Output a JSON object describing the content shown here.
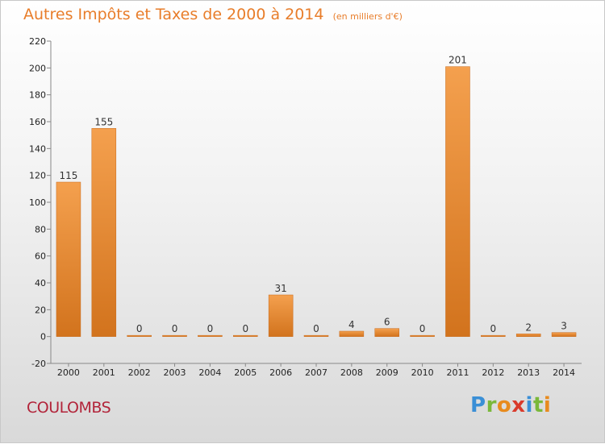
{
  "chart_data": {
    "type": "bar",
    "title": "Autres Impôts et Taxes de 2000 à 2014",
    "subtitle": "(en milliers d'€)",
    "categories": [
      "2000",
      "2001",
      "2002",
      "2003",
      "2004",
      "2005",
      "2006",
      "2007",
      "2008",
      "2009",
      "2010",
      "2011",
      "2012",
      "2013",
      "2014"
    ],
    "values": [
      115,
      155,
      0,
      0,
      0,
      0,
      31,
      0,
      4,
      6,
      0,
      201,
      0,
      2,
      3
    ],
    "data_labels": [
      "115",
      "155",
      "0",
      "0",
      "0",
      "0",
      "31",
      "0",
      "4",
      "6",
      "0",
      "201",
      "0",
      "2",
      "3"
    ],
    "xlabel": "",
    "ylabel": "",
    "ylim": [
      -20,
      220
    ],
    "yticks": [
      -20,
      0,
      20,
      40,
      60,
      80,
      100,
      120,
      140,
      160,
      180,
      200,
      220
    ],
    "grid": false,
    "bar_color": "#e8842e"
  },
  "footer": {
    "town": "COULOMBS",
    "brand_letters": [
      {
        "ch": "P",
        "color": "#3a8fd6"
      },
      {
        "ch": "r",
        "color": "#7ab83a"
      },
      {
        "ch": "o",
        "color": "#e88b1e"
      },
      {
        "ch": "x",
        "color": "#d93a2b"
      },
      {
        "ch": "i",
        "color": "#3a8fd6"
      },
      {
        "ch": "t",
        "color": "#7ab83a"
      },
      {
        "ch": "i",
        "color": "#e88b1e"
      }
    ]
  }
}
